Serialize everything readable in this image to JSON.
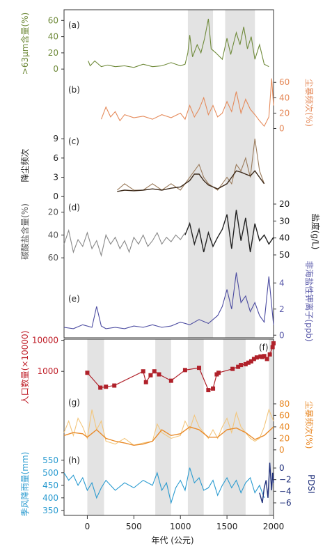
{
  "x_axis": {
    "label": "年代 (公元)",
    "range": [
      -250,
      2000
    ],
    "ticks": [
      0,
      500,
      1000,
      1500,
      2000
    ]
  },
  "chart_data": [
    {
      "type": "line",
      "panel_label": "(a)",
      "ylabel": ">63μm含量(%)",
      "y_side": "left",
      "ylim": [
        -5,
        68
      ],
      "ticks": [
        0,
        20,
        40,
        60
      ],
      "shading": [
        [
          1080,
          1350
        ],
        [
          1480,
          1800
        ]
      ],
      "series": [
        {
          "color": "#6f8a3a",
          "x": [
            10,
            30,
            80,
            150,
            220,
            300,
            400,
            500,
            600,
            700,
            800,
            900,
            1000,
            1050,
            1080,
            1100,
            1130,
            1180,
            1220,
            1260,
            1300,
            1330,
            1380,
            1450,
            1500,
            1540,
            1600,
            1640,
            1680,
            1720,
            1760,
            1800,
            1850,
            1900,
            1950
          ],
          "y": [
            10,
            4,
            10,
            3,
            5,
            3,
            4,
            2,
            6,
            3,
            4,
            8,
            4,
            6,
            20,
            42,
            15,
            30,
            20,
            38,
            62,
            25,
            20,
            12,
            38,
            18,
            45,
            30,
            52,
            25,
            40,
            12,
            30,
            6,
            3
          ]
        }
      ]
    },
    {
      "type": "line",
      "panel_label": "(b)",
      "ylabel": "尘暴频次(%)",
      "y_side": "right",
      "ylim": [
        -5,
        72
      ],
      "ticks": [
        0,
        20,
        40,
        60
      ],
      "shading": [
        [
          1080,
          1350
        ],
        [
          1480,
          1800
        ]
      ],
      "series": [
        {
          "color": "#e58a5a",
          "x": [
            150,
            200,
            250,
            300,
            350,
            400,
            500,
            600,
            700,
            800,
            900,
            1000,
            1050,
            1100,
            1150,
            1200,
            1250,
            1300,
            1350,
            1400,
            1450,
            1500,
            1550,
            1600,
            1650,
            1700,
            1750,
            1800,
            1850,
            1900,
            1950,
            1980,
            2000
          ],
          "y": [
            12,
            28,
            15,
            22,
            10,
            18,
            14,
            16,
            12,
            18,
            14,
            20,
            12,
            30,
            15,
            25,
            40,
            18,
            30,
            15,
            20,
            35,
            22,
            48,
            20,
            38,
            25,
            18,
            10,
            3,
            15,
            65,
            30
          ]
        }
      ]
    },
    {
      "type": "line",
      "panel_label": "(c)",
      "ylabel": "降尘频次",
      "y_side": "left",
      "ylim": [
        -0.3,
        10
      ],
      "ticks": [
        0,
        3,
        6,
        9
      ],
      "shading": [
        [
          1080,
          1350
        ],
        [
          1480,
          1800
        ]
      ],
      "series": [
        {
          "color": "#9a7a5a",
          "x": [
            320,
            400,
            500,
            600,
            700,
            800,
            900,
            1000,
            1100,
            1150,
            1200,
            1250,
            1300,
            1400,
            1500,
            1550,
            1600,
            1650,
            1700,
            1750,
            1800,
            1850,
            1900
          ],
          "y": [
            1,
            2,
            1,
            1,
            2,
            1,
            2,
            1,
            3,
            4,
            5,
            3,
            2,
            1,
            3,
            2,
            5,
            4,
            6,
            3,
            9,
            4,
            2
          ]
        },
        {
          "color": "#3d2a1a",
          "x": [
            320,
            400,
            500,
            600,
            700,
            800,
            900,
            1000,
            1100,
            1150,
            1200,
            1250,
            1300,
            1400,
            1500,
            1550,
            1600,
            1650,
            1700,
            1750,
            1800,
            1850,
            1900
          ],
          "y": [
            0.8,
            1,
            0.9,
            1,
            1.2,
            1,
            1.3,
            1.5,
            2.5,
            3.5,
            3.5,
            2.5,
            1.8,
            1.2,
            2,
            3,
            4,
            3.8,
            3.5,
            3.2,
            4,
            3,
            2
          ]
        }
      ]
    },
    {
      "type": "line",
      "panel_label": "(d)",
      "ylabel": "碳酸盐含量(%)",
      "y_side": "left",
      "ylim": [
        66,
        8
      ],
      "ticks": [
        20,
        40,
        60
      ],
      "ylabel_right": "盐度(g/L)",
      "ticks_right": [
        20,
        30,
        40,
        50
      ],
      "shading": [
        [
          1080,
          1350
        ],
        [
          1480,
          1800
        ]
      ],
      "series": [
        {
          "color": "#888888",
          "x": [
            -250,
            -200,
            -150,
            -100,
            -50,
            0,
            50,
            100,
            150,
            200,
            250,
            300,
            350,
            400,
            450,
            500,
            550,
            600,
            650,
            700,
            750,
            800,
            850,
            900,
            950,
            1000,
            1050
          ],
          "y": [
            48,
            36,
            55,
            44,
            50,
            38,
            52,
            45,
            58,
            40,
            48,
            42,
            52,
            45,
            55,
            42,
            48,
            40,
            50,
            45,
            38,
            48,
            42,
            46,
            40,
            44,
            38
          ]
        },
        {
          "color": "#222222",
          "x": [
            1050,
            1100,
            1150,
            1200,
            1250,
            1300,
            1350,
            1400,
            1450,
            1500,
            1550,
            1600,
            1650,
            1700,
            1750,
            1800,
            1850,
            1900,
            1950,
            2000
          ],
          "y": [
            40,
            30,
            48,
            35,
            55,
            38,
            50,
            42,
            35,
            22,
            52,
            18,
            45,
            25,
            55,
            30,
            45,
            40,
            48,
            42
          ]
        }
      ]
    },
    {
      "type": "line",
      "panel_label": "(e)",
      "ylabel": "非海盐性钾离子(ppb)",
      "y_side": "right",
      "ylim": [
        -0.2,
        5.4
      ],
      "ticks": [
        0,
        2,
        4
      ],
      "series": [
        {
          "color": "#4a4aa0",
          "x": [
            -250,
            -150,
            -50,
            50,
            100,
            150,
            200,
            300,
            400,
            500,
            600,
            700,
            800,
            900,
            1000,
            1100,
            1200,
            1300,
            1400,
            1450,
            1500,
            1550,
            1600,
            1650,
            1700,
            1750,
            1800,
            1850,
            1900,
            1950,
            2000
          ],
          "y": [
            0.6,
            0.5,
            0.8,
            0.6,
            2.2,
            0.7,
            0.5,
            0.6,
            0.5,
            0.7,
            0.6,
            0.8,
            0.6,
            0.7,
            1,
            0.8,
            1.2,
            0.9,
            1.5,
            2.2,
            3.5,
            2,
            4.8,
            2.5,
            3,
            1.8,
            2.5,
            1.5,
            1,
            4.5,
            0.8
          ]
        }
      ]
    },
    {
      "type": "scatter",
      "panel_label": "(f)",
      "ylabel": "人口数量(×10000)",
      "y_side": "left",
      "log_scale": true,
      "ticks": [
        1000,
        10000
      ],
      "shading": [
        [
          0,
          180
        ],
        [
          730,
          900
        ],
        [
          1080,
          1250
        ],
        [
          1460,
          1700
        ],
        [
          1950,
          2000
        ]
      ],
      "series": [
        {
          "color": "#b0212a",
          "x": [
            0,
            140,
            200,
            290,
            600,
            630,
            680,
            720,
            770,
            900,
            1050,
            1200,
            1300,
            1350,
            1390,
            1410,
            1560,
            1620,
            1650,
            1700,
            1730,
            1760,
            1790,
            1820,
            1860,
            1880,
            1900,
            1930,
            1960,
            1990,
            2000
          ],
          "y": [
            900,
            300,
            320,
            350,
            1000,
            450,
            750,
            1000,
            800,
            500,
            1100,
            1300,
            250,
            280,
            800,
            900,
            1200,
            1400,
            1600,
            1700,
            1900,
            2100,
            2500,
            2800,
            3000,
            2900,
            3100,
            2500,
            3500,
            6000,
            8000
          ]
        }
      ]
    },
    {
      "type": "line",
      "panel_label": "(g)",
      "ylabel": "尘暴频次(%)",
      "y_side": "right",
      "ylim": [
        -5,
        92
      ],
      "ticks": [
        0,
        20,
        40,
        60,
        80
      ],
      "shading": [
        [
          0,
          180
        ],
        [
          730,
          900
        ],
        [
          1080,
          1250
        ],
        [
          1460,
          1700
        ],
        [
          1950,
          2000
        ]
      ],
      "series": [
        {
          "color": "#f3c67c",
          "x": [
            -250,
            -200,
            -150,
            -100,
            -50,
            0,
            50,
            100,
            150,
            200,
            300,
            400,
            500,
            600,
            700,
            750,
            800,
            900,
            1000,
            1050,
            1100,
            1150,
            1200,
            1250,
            1300,
            1350,
            1400,
            1450,
            1500,
            1550,
            1600,
            1650,
            1700,
            1750,
            1800,
            1850,
            1900,
            1950,
            2000
          ],
          "y": [
            30,
            50,
            25,
            55,
            40,
            20,
            70,
            35,
            50,
            15,
            10,
            20,
            8,
            12,
            15,
            45,
            30,
            20,
            25,
            50,
            35,
            60,
            40,
            30,
            20,
            35,
            20,
            40,
            55,
            30,
            65,
            40,
            30,
            20,
            15,
            20,
            40,
            70,
            50
          ]
        },
        {
          "color": "#e98a28",
          "x": [
            -250,
            -150,
            -50,
            0,
            100,
            200,
            300,
            400,
            500,
            600,
            700,
            800,
            900,
            1000,
            1100,
            1200,
            1300,
            1400,
            1500,
            1600,
            1700,
            1800,
            1900,
            2000
          ],
          "y": [
            25,
            30,
            28,
            22,
            35,
            20,
            15,
            12,
            8,
            10,
            15,
            35,
            25,
            28,
            40,
            35,
            22,
            22,
            35,
            38,
            30,
            18,
            25,
            40
          ]
        }
      ]
    },
    {
      "type": "line",
      "panel_label": "(h)",
      "ylabel": "季风降雨量(mm)",
      "y_side": "left",
      "ylim": [
        330,
        580
      ],
      "ticks": [
        350,
        400,
        450,
        500,
        550
      ],
      "ylabel_right": "PDSI",
      "ticks_right": [
        0,
        -2,
        -4,
        -6
      ],
      "shading": [
        [
          0,
          180
        ],
        [
          730,
          900
        ],
        [
          1080,
          1250
        ],
        [
          1460,
          1700
        ],
        [
          1950,
          2000
        ]
      ],
      "series": [
        {
          "color": "#2a9bd0",
          "x": [
            -250,
            -200,
            -150,
            -100,
            -50,
            0,
            50,
            100,
            150,
            200,
            300,
            400,
            500,
            600,
            700,
            750,
            800,
            850,
            900,
            950,
            1000,
            1050,
            1100,
            1150,
            1200,
            1250,
            1300,
            1350,
            1400,
            1450,
            1500,
            1550,
            1600,
            1650,
            1700,
            1750,
            1800,
            1850,
            1900
          ],
          "y": [
            500,
            470,
            490,
            450,
            480,
            430,
            460,
            400,
            440,
            470,
            430,
            460,
            440,
            470,
            450,
            500,
            430,
            460,
            380,
            440,
            470,
            430,
            520,
            460,
            480,
            430,
            440,
            470,
            410,
            450,
            480,
            440,
            470,
            420,
            460,
            480,
            420,
            450,
            400
          ]
        },
        {
          "color": "#1e2e7a",
          "x": [
            1850,
            1880,
            1900,
            1920,
            1940,
            1960,
            1970,
            1980,
            1990,
            2000
          ],
          "y": [
            420,
            380,
            440,
            470,
            400,
            540,
            480,
            430,
            500,
            460
          ]
        }
      ]
    }
  ]
}
